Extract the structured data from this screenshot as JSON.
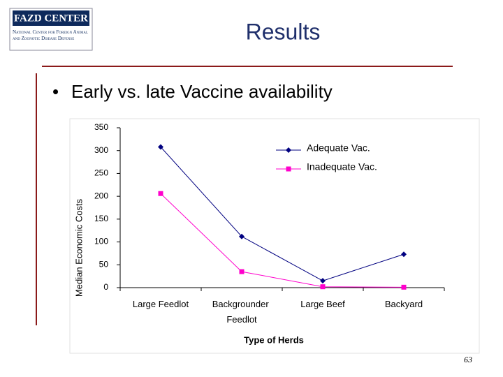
{
  "slide": {
    "logo_title": "FAZD CENTER",
    "logo_subtitle": "National Center for Foreign Animal and Zoonotic Disease Defense",
    "title": "Results",
    "bullet": "Early vs. late Vaccine availability",
    "page_number": "63"
  },
  "chart_data": {
    "type": "line",
    "ylabel": "Median Economic Costs",
    "xlabel": "Type of Herds",
    "categories": [
      "Large Feedlot",
      "Backgrounder Feedlot",
      "Large Beef",
      "Backyard"
    ],
    "series": [
      {
        "name": "Adequate Vac.",
        "color": "#000080",
        "marker": "diamond",
        "values": [
          308,
          112,
          15,
          73
        ]
      },
      {
        "name": "Inadequate Vac.",
        "color": "#ff00cc",
        "marker": "square",
        "values": [
          206,
          35,
          2,
          1
        ]
      }
    ],
    "ylim": [
      0,
      350
    ],
    "yticks": [
      0,
      50,
      100,
      150,
      200,
      250,
      300,
      350
    ],
    "grid": false,
    "legend": "upper right"
  }
}
